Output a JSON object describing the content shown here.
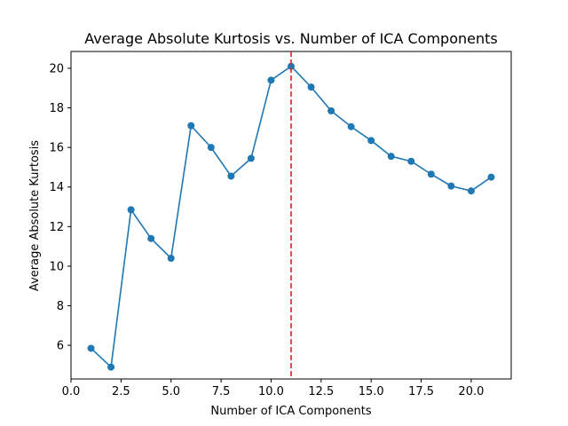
{
  "chart_data": {
    "type": "line",
    "title": "Average Absolute Kurtosis vs. Number of ICA Components",
    "xlabel": "Number of ICA Components",
    "ylabel": "Average Absolute Kurtosis",
    "xlim": [
      0.0,
      22.0
    ],
    "ylim": [
      4.3,
      20.85
    ],
    "x_ticks": [
      0.0,
      2.5,
      5.0,
      7.5,
      10.0,
      12.5,
      15.0,
      17.5,
      20.0
    ],
    "x_tick_labels": [
      "0.0",
      "2.5",
      "5.0",
      "7.5",
      "10.0",
      "12.5",
      "15.0",
      "17.5",
      "20.0"
    ],
    "y_ticks": [
      6,
      8,
      10,
      12,
      14,
      16,
      18,
      20
    ],
    "y_tick_labels": [
      "6",
      "8",
      "10",
      "12",
      "14",
      "16",
      "18",
      "20"
    ],
    "grid": false,
    "series": [
      {
        "x": [
          1,
          2,
          3,
          4,
          5,
          6,
          7,
          8,
          9,
          10,
          11,
          12,
          13,
          14,
          15,
          16,
          17,
          18,
          19,
          20,
          21
        ],
        "y": [
          5.85,
          4.9,
          12.85,
          11.4,
          10.4,
          17.1,
          16.0,
          14.55,
          15.45,
          19.4,
          20.1,
          19.05,
          17.85,
          17.05,
          16.35,
          15.55,
          15.3,
          14.65,
          14.05,
          13.8,
          14.5
        ],
        "color": "#1f77b4",
        "marker": "circle"
      }
    ],
    "vline": {
      "x": 11,
      "color": "#d62728",
      "style": "dashed"
    }
  }
}
